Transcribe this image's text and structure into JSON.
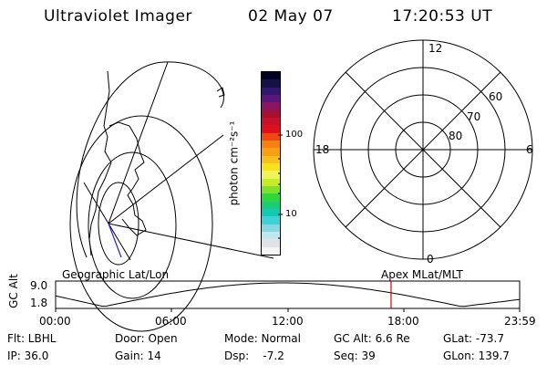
{
  "header": {
    "title": "Ultraviolet Imager",
    "date": "02 May 07",
    "time": "17:20:53 UT"
  },
  "colorbar": {
    "label": "photon cm⁻²s⁻¹",
    "tick_100": "100",
    "tick_10": "10",
    "colors": [
      "#f4f4f4",
      "#dde3e6",
      "#bfe7ee",
      "#87d6e3",
      "#3ed0d4",
      "#13c9b6",
      "#19cc7a",
      "#2fd63c",
      "#7ee02c",
      "#c4ec2b",
      "#eef35a",
      "#f8e21c",
      "#f7c01c",
      "#f7a014",
      "#f78012",
      "#f04a14",
      "#e0101b",
      "#c8102a",
      "#a8102f",
      "#8a1560",
      "#5a1678",
      "#321670",
      "#151048",
      "#000020"
    ]
  },
  "geo_panel": {
    "label": "Geographic Lat/Lon"
  },
  "polar_panel": {
    "label": "Apex MLat/MLT",
    "mlt_12": "12",
    "mlt_18": "18",
    "mlt_6": "6",
    "mlt_0": "0",
    "lat_60": "60",
    "lat_70": "70",
    "lat_80": "80"
  },
  "alt_plot": {
    "ylabel": "GC Alt",
    "y_max": "9.0",
    "y_min": "1.8",
    "x_ticks": [
      "00:00",
      "06:00",
      "12:00",
      "18:00",
      "23:59"
    ],
    "current_time_hours": 17.35
  },
  "info": {
    "filter": "Flt: LBHL",
    "door": "Door: Open",
    "mode": "Mode: Normal",
    "gc_alt": "GC Alt: 6.6 Re",
    "glat": "GLat: -73.7",
    "ip": "IP: 36.0",
    "gain": "Gain: 14",
    "dsp": "Dsp:    -7.2",
    "seq": "Seq: 39",
    "glon": "GLon: 139.7"
  }
}
